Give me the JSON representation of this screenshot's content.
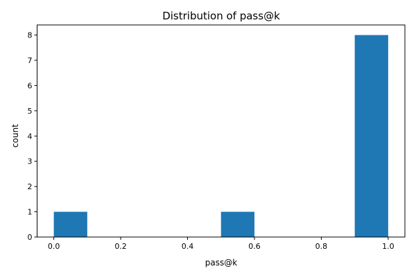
{
  "chart_data": {
    "type": "bar",
    "title": "Distribution of pass@k",
    "xlabel": "pass@k",
    "ylabel": "count",
    "xlim": [
      -0.05,
      1.05
    ],
    "ylim": [
      0,
      8.4
    ],
    "xticks": [
      0.0,
      0.2,
      0.4,
      0.6,
      0.8,
      1.0
    ],
    "xtick_labels": [
      "0.0",
      "0.2",
      "0.4",
      "0.6",
      "0.8",
      "1.0"
    ],
    "yticks": [
      0,
      1,
      2,
      3,
      4,
      5,
      6,
      7,
      8
    ],
    "ytick_labels": [
      "0",
      "1",
      "2",
      "3",
      "4",
      "5",
      "6",
      "7",
      "8"
    ],
    "bins": [
      {
        "start": 0.0,
        "end": 0.1,
        "count": 1
      },
      {
        "start": 0.1,
        "end": 0.2,
        "count": 0
      },
      {
        "start": 0.2,
        "end": 0.3,
        "count": 0
      },
      {
        "start": 0.3,
        "end": 0.4,
        "count": 0
      },
      {
        "start": 0.4,
        "end": 0.5,
        "count": 0
      },
      {
        "start": 0.5,
        "end": 0.6,
        "count": 1
      },
      {
        "start": 0.6,
        "end": 0.7,
        "count": 0
      },
      {
        "start": 0.7,
        "end": 0.8,
        "count": 0
      },
      {
        "start": 0.8,
        "end": 0.9,
        "count": 0
      },
      {
        "start": 0.9,
        "end": 1.0,
        "count": 8
      }
    ],
    "bar_color": "#1f77b4",
    "grid": false,
    "legend": "none"
  }
}
